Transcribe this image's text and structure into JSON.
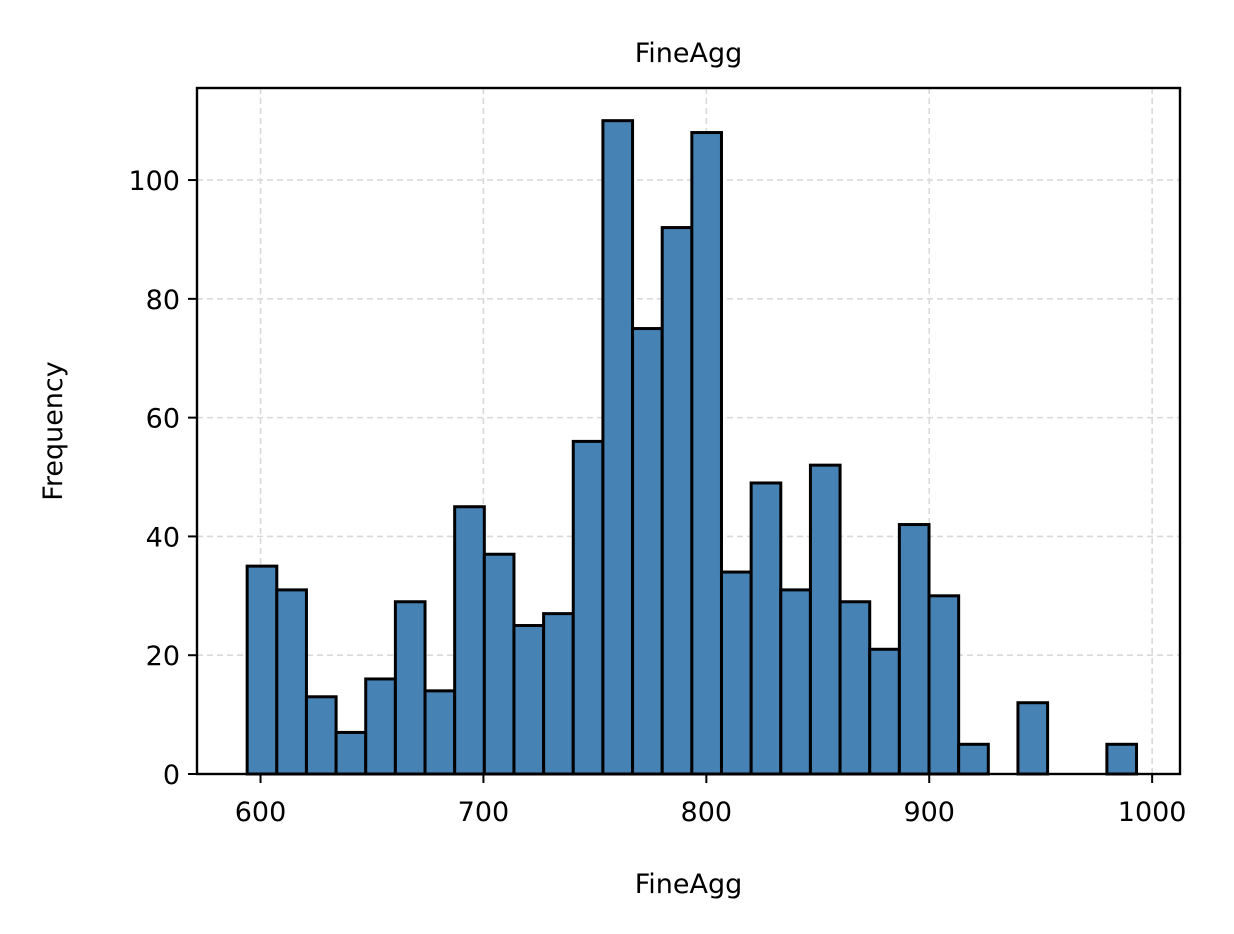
{
  "chart_data": {
    "type": "bar",
    "title": "FineAgg",
    "xlabel": "FineAgg",
    "ylabel": "Frequency",
    "bin_edges": [
      594.0,
      607.3,
      620.6,
      633.9,
      647.2,
      660.5,
      673.8,
      687.1,
      700.4,
      713.7,
      727.0,
      740.3,
      753.6,
      766.9,
      780.2,
      793.5,
      806.8,
      820.1,
      833.4,
      846.7,
      860.0,
      873.3,
      886.6,
      899.9,
      913.2,
      926.5,
      939.8,
      953.1,
      966.4,
      979.7,
      993.0
    ],
    "values": [
      35,
      31,
      13,
      7,
      16,
      29,
      14,
      45,
      37,
      25,
      27,
      56,
      110,
      75,
      92,
      108,
      34,
      49,
      31,
      52,
      29,
      21,
      42,
      30,
      5,
      0,
      12,
      0,
      0,
      5
    ],
    "xlim": [
      571.5,
      1012.5
    ],
    "ylim": [
      0,
      115.5
    ],
    "xticks": [
      600,
      700,
      800,
      900,
      1000
    ],
    "yticks": [
      0,
      20,
      40,
      60,
      80,
      100
    ],
    "grid": true,
    "colors": {
      "bar": "#4682b4",
      "edge": "#000000",
      "grid": "#d9d9d9"
    }
  }
}
